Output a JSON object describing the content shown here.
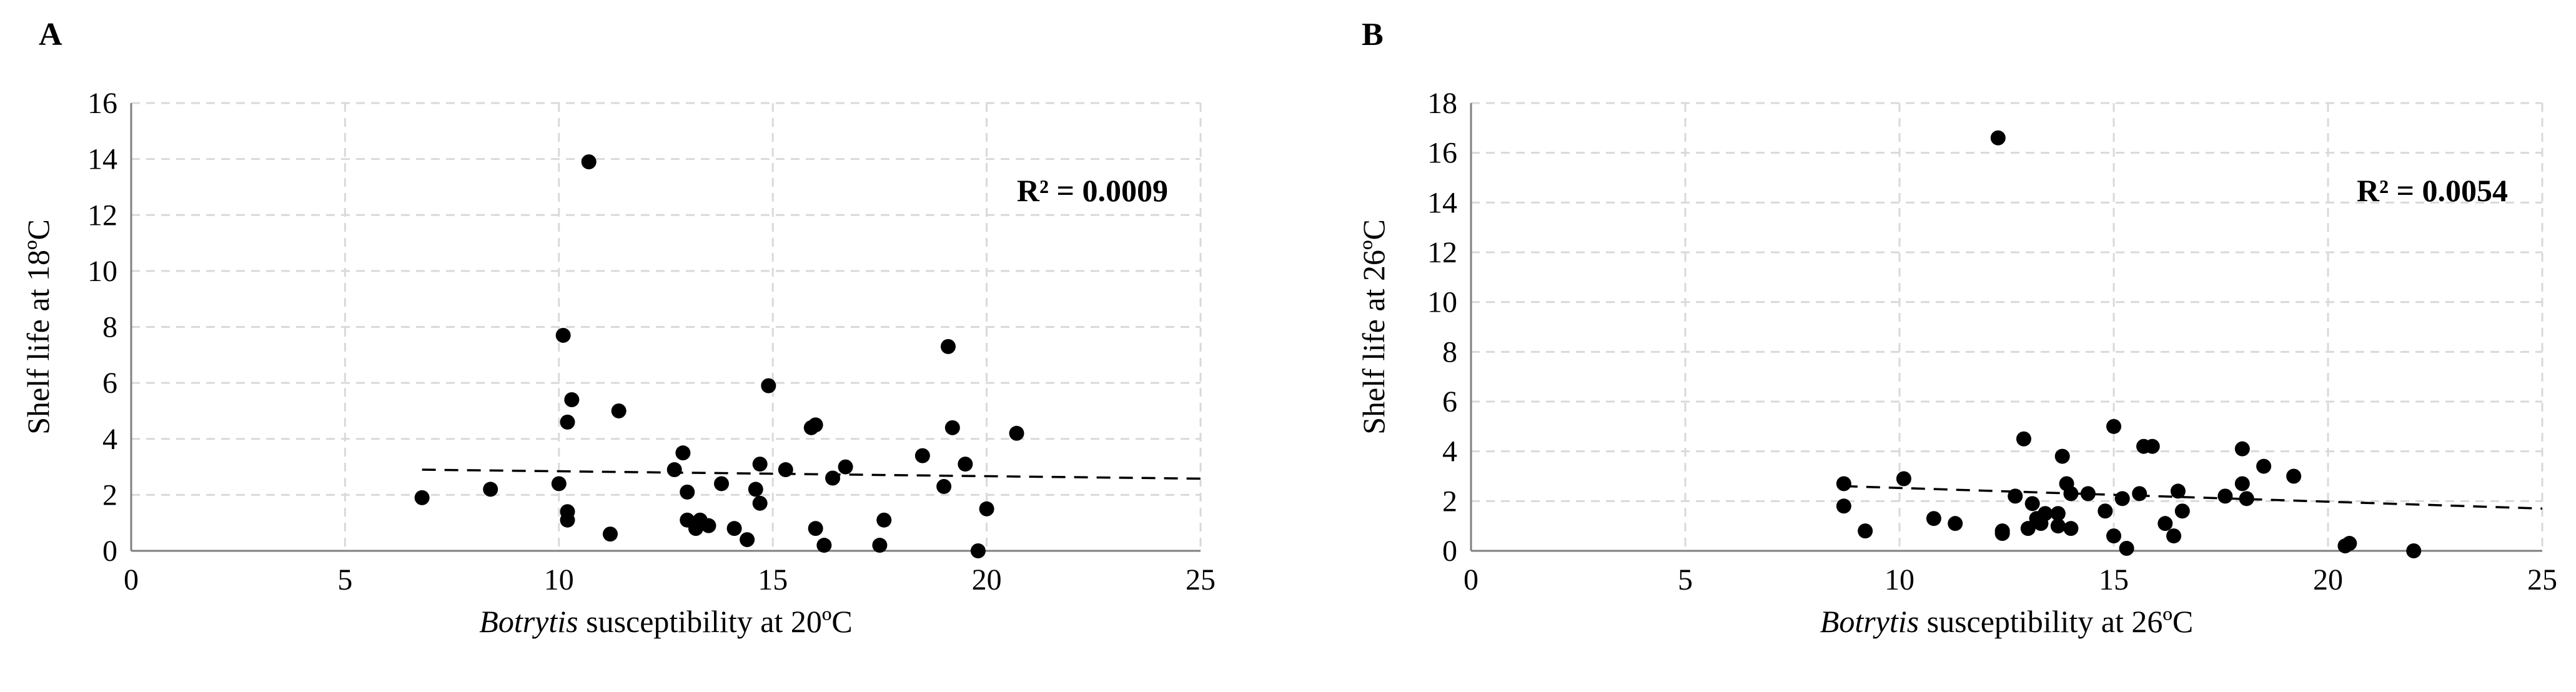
{
  "chart_data": [
    {
      "type": "scatter",
      "panel_label": "A",
      "xlabel_italic": "Botrytis",
      "xlabel_rest": " susceptibility  at 20ºC",
      "ylabel": "Shelf life at 18ºC",
      "xlim": [
        0,
        25
      ],
      "ylim": [
        0,
        16
      ],
      "xticks": [
        0,
        5,
        10,
        15,
        20,
        25
      ],
      "yticks": [
        0,
        2,
        4,
        6,
        8,
        10,
        12,
        14,
        16
      ],
      "grid": true,
      "annotation": "R² = 0.0009",
      "trendline": {
        "x": [
          6.8,
          25
        ],
        "y": [
          2.9,
          2.58
        ]
      },
      "points": [
        [
          6.8,
          1.9
        ],
        [
          8.4,
          2.2
        ],
        [
          10.0,
          2.4
        ],
        [
          10.1,
          7.7
        ],
        [
          10.2,
          1.4
        ],
        [
          10.2,
          1.1
        ],
        [
          10.2,
          4.6
        ],
        [
          10.3,
          5.4
        ],
        [
          10.7,
          13.9
        ],
        [
          11.2,
          0.6
        ],
        [
          11.4,
          5.0
        ],
        [
          12.7,
          2.9
        ],
        [
          12.9,
          3.5
        ],
        [
          13.0,
          1.1
        ],
        [
          13.0,
          2.1
        ],
        [
          13.2,
          0.8
        ],
        [
          13.3,
          1.1
        ],
        [
          13.5,
          0.9
        ],
        [
          13.8,
          2.4
        ],
        [
          14.1,
          0.8
        ],
        [
          14.4,
          0.4
        ],
        [
          14.6,
          2.2
        ],
        [
          14.7,
          1.7
        ],
        [
          14.7,
          3.1
        ],
        [
          14.9,
          5.9
        ],
        [
          15.3,
          2.9
        ],
        [
          15.9,
          4.4
        ],
        [
          16.0,
          4.5
        ],
        [
          16.0,
          0.8
        ],
        [
          16.2,
          0.2
        ],
        [
          16.4,
          2.6
        ],
        [
          16.7,
          3.0
        ],
        [
          17.5,
          0.2
        ],
        [
          17.6,
          1.1
        ],
        [
          18.5,
          3.4
        ],
        [
          19.0,
          2.3
        ],
        [
          19.1,
          7.3
        ],
        [
          19.2,
          4.4
        ],
        [
          19.5,
          3.1
        ],
        [
          19.8,
          0.0
        ],
        [
          20.0,
          1.5
        ],
        [
          20.7,
          4.2
        ]
      ]
    },
    {
      "type": "scatter",
      "panel_label": "B",
      "xlabel_italic": "Botrytis",
      "xlabel_rest": " susceptibility  at 26ºC",
      "ylabel": "Shelf  life  at 26ºC",
      "xlim": [
        0,
        25
      ],
      "ylim": [
        0,
        18
      ],
      "xticks": [
        0,
        5,
        10,
        15,
        20,
        25
      ],
      "yticks": [
        0,
        2,
        4,
        6,
        8,
        10,
        12,
        14,
        16,
        18
      ],
      "grid": true,
      "annotation": "R² = 0.0054",
      "trendline": {
        "x": [
          8.7,
          25
        ],
        "y": [
          2.6,
          1.7
        ]
      },
      "points": [
        [
          8.7,
          2.7
        ],
        [
          8.7,
          1.8
        ],
        [
          9.2,
          0.8
        ],
        [
          10.1,
          2.9
        ],
        [
          10.8,
          1.3
        ],
        [
          11.3,
          1.1
        ],
        [
          12.3,
          16.6
        ],
        [
          12.4,
          0.7
        ],
        [
          12.4,
          0.8
        ],
        [
          12.7,
          2.2
        ],
        [
          12.9,
          4.5
        ],
        [
          13.0,
          0.9
        ],
        [
          13.1,
          1.9
        ],
        [
          13.2,
          1.3
        ],
        [
          13.3,
          1.1
        ],
        [
          13.4,
          1.5
        ],
        [
          13.7,
          1.5
        ],
        [
          13.7,
          1.0
        ],
        [
          13.8,
          3.8
        ],
        [
          13.9,
          2.7
        ],
        [
          14.0,
          2.3
        ],
        [
          14.0,
          0.9
        ],
        [
          14.4,
          2.3
        ],
        [
          14.8,
          1.6
        ],
        [
          15.0,
          5.0
        ],
        [
          15.0,
          0.6
        ],
        [
          15.2,
          2.1
        ],
        [
          15.3,
          0.1
        ],
        [
          15.6,
          2.3
        ],
        [
          15.7,
          4.2
        ],
        [
          15.9,
          4.2
        ],
        [
          16.2,
          1.1
        ],
        [
          16.4,
          0.6
        ],
        [
          16.5,
          2.4
        ],
        [
          16.6,
          1.6
        ],
        [
          17.6,
          2.2
        ],
        [
          18.0,
          4.1
        ],
        [
          18.0,
          2.7
        ],
        [
          18.1,
          2.1
        ],
        [
          18.5,
          3.4
        ],
        [
          19.2,
          3.0
        ],
        [
          20.4,
          0.2
        ],
        [
          20.5,
          0.3
        ],
        [
          22.0,
          0.0
        ]
      ]
    }
  ]
}
